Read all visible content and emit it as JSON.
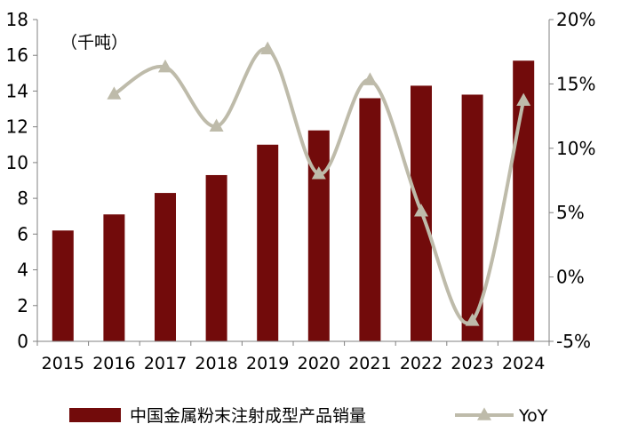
{
  "colors": {
    "bar": "#720B0B",
    "line": "#BEBBAA",
    "axis": "#808080",
    "text": "#000000"
  },
  "chart_data": {
    "type": "bar",
    "unit_label": "（千吨）",
    "categories": [
      "2015",
      "2016",
      "2017",
      "2018",
      "2019",
      "2020",
      "2021",
      "2022",
      "2023",
      "2024"
    ],
    "y_left": {
      "min": 0,
      "max": 18,
      "step": 2,
      "ticks": [
        "0",
        "2",
        "4",
        "6",
        "8",
        "10",
        "12",
        "14",
        "16",
        "18"
      ]
    },
    "y_right": {
      "min": -5,
      "max": 20,
      "step": 5,
      "ticks": [
        "-5%",
        "0%",
        "5%",
        "10%",
        "15%",
        "20%"
      ]
    },
    "series": [
      {
        "name": "中国金属粉末注射成型产品销量",
        "type": "bar",
        "axis": "left",
        "values": [
          6.2,
          7.1,
          8.3,
          9.3,
          11.0,
          11.8,
          13.6,
          14.3,
          13.8,
          15.7
        ]
      },
      {
        "name": "YoY",
        "type": "line",
        "axis": "right",
        "marker": "triangle",
        "values": [
          null,
          14.2,
          16.3,
          11.7,
          17.7,
          8.0,
          15.3,
          5.1,
          -3.4,
          13.7
        ]
      }
    ],
    "legend_position": "bottom"
  }
}
